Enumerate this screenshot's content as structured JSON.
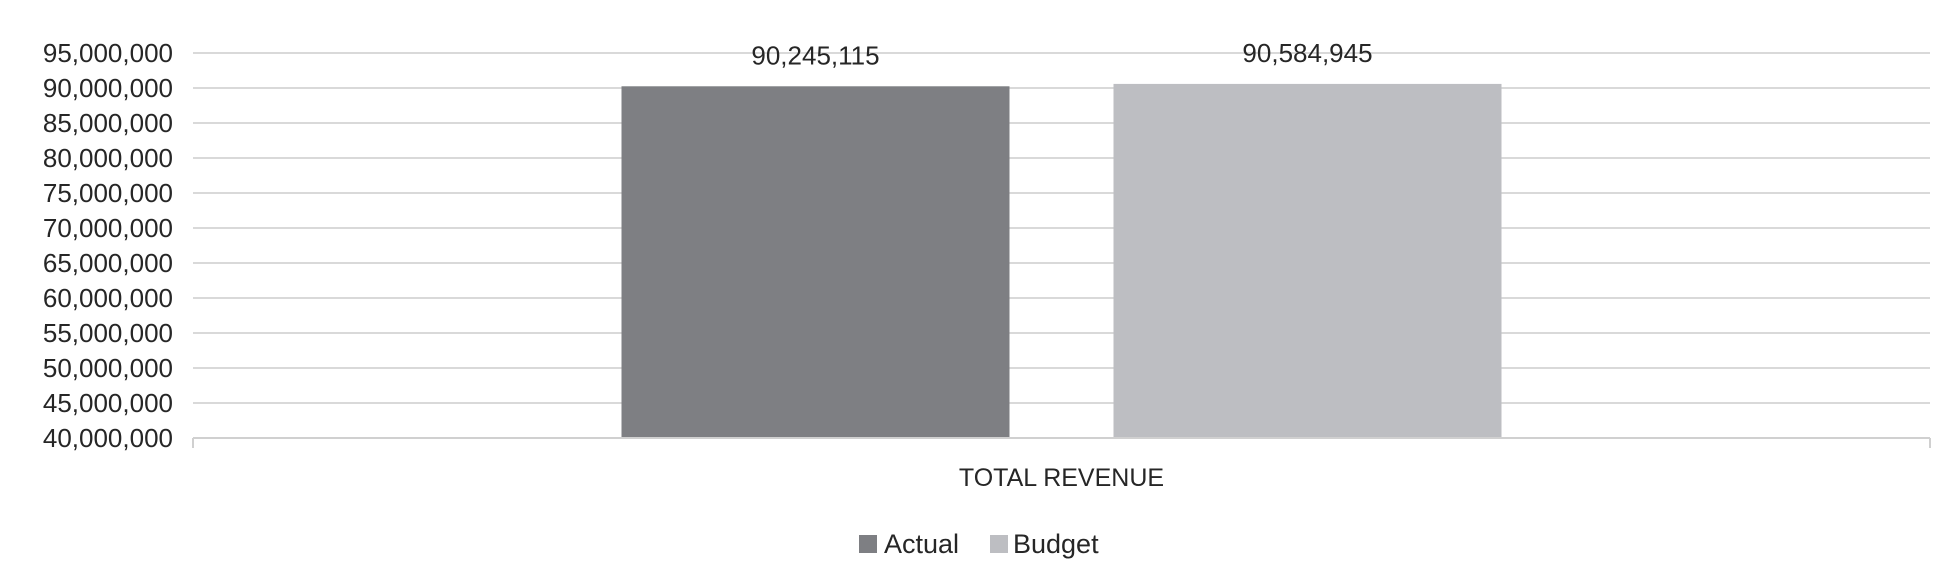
{
  "chart_data": {
    "type": "bar",
    "categories": [
      "TOTAL REVENUE"
    ],
    "series": [
      {
        "name": "Actual",
        "values": [
          90245115
        ],
        "value_label": "90,245,115",
        "color": "#7e7f83"
      },
      {
        "name": "Budget",
        "values": [
          90584945
        ],
        "value_label": "90,584,945",
        "color": "#bdbec2"
      }
    ],
    "ylim": [
      40000000,
      95000000
    ],
    "y_ticks": [
      40000000,
      45000000,
      50000000,
      55000000,
      60000000,
      65000000,
      70000000,
      75000000,
      80000000,
      85000000,
      90000000,
      95000000
    ],
    "y_tick_labels": [
      "40,000,000",
      "45,000,000",
      "50,000,000",
      "55,000,000",
      "60,000,000",
      "65,000,000",
      "70,000,000",
      "75,000,000",
      "80,000,000",
      "85,000,000",
      "90,000,000",
      "95,000,000"
    ],
    "title": "",
    "xlabel": "",
    "ylabel": "",
    "grid": true,
    "legend_position": "bottom"
  }
}
